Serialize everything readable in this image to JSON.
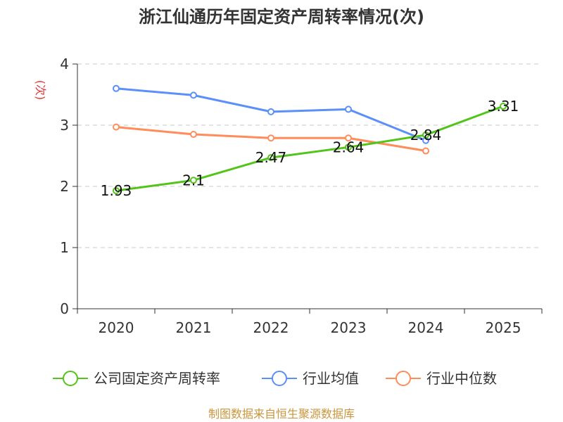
{
  "chart_data": {
    "type": "line",
    "title": "浙江仙通历年固定资产周转率情况(次)",
    "ylabel": "(次)",
    "xlabel": "",
    "categories": [
      "2020",
      "2021",
      "2022",
      "2023",
      "2024",
      "2025"
    ],
    "ylim": [
      0,
      4
    ],
    "yticks": [
      0,
      1,
      2,
      3,
      4
    ],
    "grid": true,
    "legend_position": "bottom",
    "series": [
      {
        "name": "公司固定资产周转率",
        "color": "#52c41a",
        "values": [
          1.93,
          2.1,
          2.47,
          2.64,
          2.84,
          3.31
        ],
        "labels": [
          "1.93",
          "2.1",
          "2.47",
          "2.64",
          "2.84",
          "3.31"
        ]
      },
      {
        "name": "行业均值",
        "color": "#5b8ff9",
        "values": [
          3.6,
          3.49,
          3.22,
          3.26,
          2.75,
          null
        ]
      },
      {
        "name": "行业中位数",
        "color": "#ff8c5a",
        "values": [
          2.97,
          2.85,
          2.79,
          2.79,
          2.58,
          null
        ]
      }
    ],
    "ylabel_color": "#e23636",
    "source": "制图数据来自恒生聚源数据库",
    "source_color": "#c8963c"
  }
}
